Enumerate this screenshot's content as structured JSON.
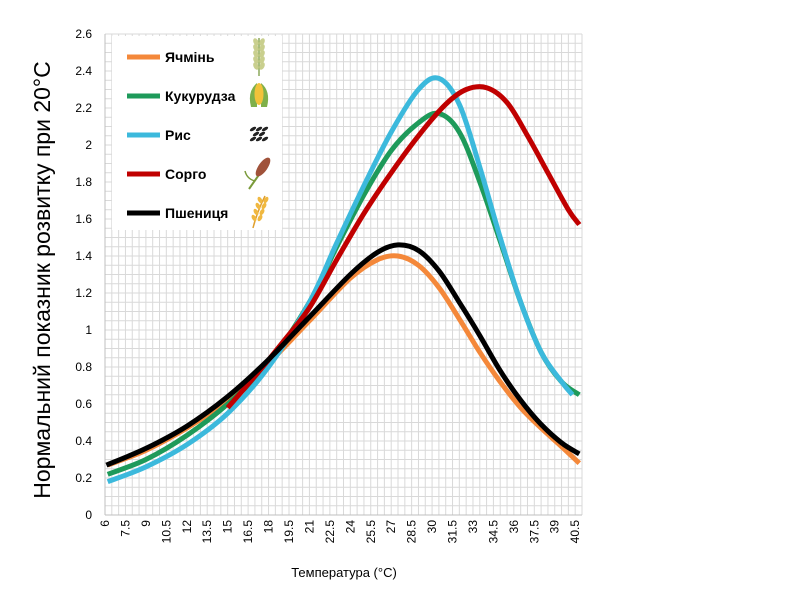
{
  "chart_data": {
    "type": "line",
    "xlabel": "Температура (°C)",
    "ylabel": "Нормальний показник розвитку при 20°C",
    "xlim": [
      6,
      41
    ],
    "ylim": [
      0,
      2.6
    ],
    "x_ticks": [
      "6",
      "7.5",
      "9",
      "10.5",
      "12",
      "13.5",
      "15",
      "16.5",
      "18",
      "19.5",
      "21",
      "22.5",
      "24",
      "25.5",
      "27",
      "28.5",
      "30",
      "31.5",
      "33",
      "34.5",
      "36",
      "37.5",
      "39",
      "40.5"
    ],
    "y_ticks": [
      "0",
      "0.2",
      "0.4",
      "0.6",
      "0.8",
      "1",
      "1.2",
      "1.4",
      "1.6",
      "1.8",
      "2",
      "2.2",
      "2.4",
      "2.6"
    ],
    "grid": true,
    "legend_position": "top-left",
    "series": [
      {
        "name": "Ячмінь",
        "color": "#f4883a",
        "icon": "barley-icon",
        "points": [
          [
            6.2,
            0.27
          ],
          [
            9,
            0.35
          ],
          [
            12,
            0.47
          ],
          [
            15,
            0.62
          ],
          [
            18,
            0.82
          ],
          [
            21,
            1.05
          ],
          [
            24,
            1.28
          ],
          [
            26,
            1.38
          ],
          [
            27.5,
            1.4
          ],
          [
            29,
            1.35
          ],
          [
            30.5,
            1.23
          ],
          [
            32,
            1.06
          ],
          [
            33.5,
            0.88
          ],
          [
            35,
            0.72
          ],
          [
            36.5,
            0.58
          ],
          [
            38,
            0.47
          ],
          [
            39.5,
            0.37
          ],
          [
            40.8,
            0.28
          ]
        ]
      },
      {
        "name": "Кукурудза",
        "color": "#1e9a5a",
        "icon": "corn-icon",
        "points": [
          [
            6.2,
            0.22
          ],
          [
            9,
            0.3
          ],
          [
            12,
            0.43
          ],
          [
            15,
            0.6
          ],
          [
            18,
            0.82
          ],
          [
            21,
            1.15
          ],
          [
            23,
            1.45
          ],
          [
            25,
            1.73
          ],
          [
            27,
            1.97
          ],
          [
            29,
            2.12
          ],
          [
            30.5,
            2.17
          ],
          [
            32,
            2.07
          ],
          [
            33.5,
            1.8
          ],
          [
            35,
            1.48
          ],
          [
            36.5,
            1.15
          ],
          [
            38,
            0.88
          ],
          [
            39.5,
            0.72
          ],
          [
            40.8,
            0.65
          ]
        ]
      },
      {
        "name": "Рис",
        "color": "#3cb9dc",
        "icon": "rice-icon",
        "points": [
          [
            6.2,
            0.18
          ],
          [
            9,
            0.26
          ],
          [
            12,
            0.38
          ],
          [
            15,
            0.55
          ],
          [
            18,
            0.8
          ],
          [
            21,
            1.15
          ],
          [
            23,
            1.47
          ],
          [
            25,
            1.78
          ],
          [
            27,
            2.07
          ],
          [
            29,
            2.3
          ],
          [
            30.5,
            2.36
          ],
          [
            32,
            2.22
          ],
          [
            33.5,
            1.88
          ],
          [
            35,
            1.5
          ],
          [
            36.5,
            1.15
          ],
          [
            38,
            0.88
          ],
          [
            39.5,
            0.72
          ],
          [
            40.3,
            0.65
          ]
        ]
      },
      {
        "name": "Сорго",
        "color": "#c00000",
        "icon": "sorghum-icon",
        "points": [
          [
            15,
            0.58
          ],
          [
            17,
            0.75
          ],
          [
            19,
            0.93
          ],
          [
            21,
            1.12
          ],
          [
            23,
            1.38
          ],
          [
            25,
            1.63
          ],
          [
            27,
            1.85
          ],
          [
            29,
            2.05
          ],
          [
            31,
            2.22
          ],
          [
            32.5,
            2.3
          ],
          [
            34,
            2.31
          ],
          [
            35.5,
            2.23
          ],
          [
            37,
            2.05
          ],
          [
            38.5,
            1.85
          ],
          [
            40,
            1.65
          ],
          [
            40.8,
            1.57
          ]
        ]
      },
      {
        "name": "Пшениця",
        "color": "#000000",
        "icon": "wheat-icon",
        "points": [
          [
            6.1,
            0.27
          ],
          [
            9,
            0.36
          ],
          [
            12,
            0.48
          ],
          [
            15,
            0.64
          ],
          [
            18,
            0.84
          ],
          [
            21,
            1.07
          ],
          [
            24,
            1.3
          ],
          [
            26,
            1.42
          ],
          [
            27.5,
            1.46
          ],
          [
            29,
            1.43
          ],
          [
            30.5,
            1.32
          ],
          [
            32,
            1.15
          ],
          [
            33.5,
            0.97
          ],
          [
            35,
            0.78
          ],
          [
            36.5,
            0.62
          ],
          [
            38,
            0.49
          ],
          [
            39.5,
            0.39
          ],
          [
            40.8,
            0.33
          ]
        ]
      }
    ]
  }
}
